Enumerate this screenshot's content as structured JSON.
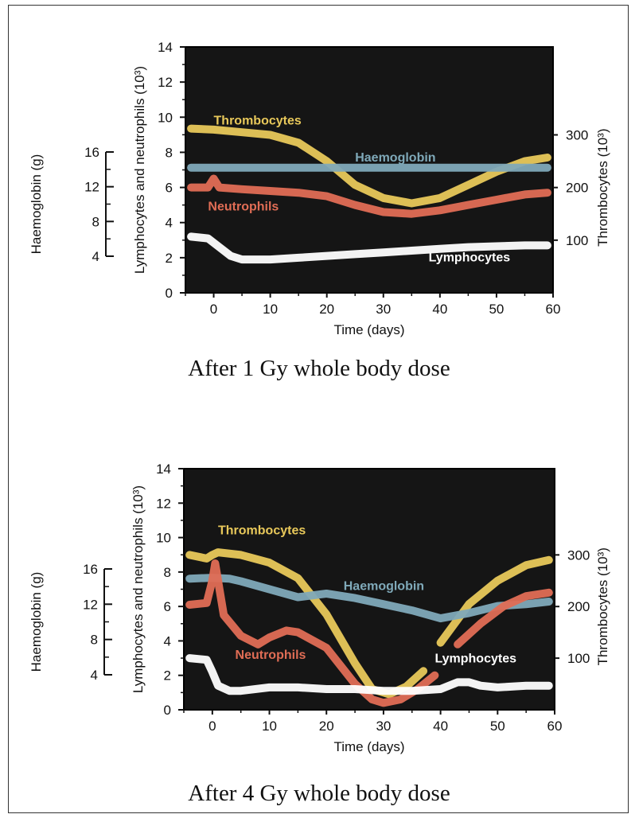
{
  "chart_data": [
    {
      "type": "line",
      "caption": "After 1 Gy whole body dose",
      "xlabel": "Time (days)",
      "x_ticks": [
        0,
        10,
        20,
        30,
        40,
        50,
        60
      ],
      "xlim": [
        -5,
        60
      ],
      "y_left_label": "Lymphocytes and neutrophils (10³)",
      "y_left_ticks": [
        0,
        2,
        4,
        6,
        8,
        10,
        12,
        14
      ],
      "y_left_lim": [
        0,
        14
      ],
      "y_hb_label": "Haemoglobin (g)",
      "y_hb_ticks": [
        4,
        8,
        12,
        16
      ],
      "y_hb_lim": [
        4,
        16
      ],
      "y_right_label": "Thrombocytes (10³)",
      "y_right_ticks": [
        100,
        200,
        300
      ],
      "y_right_lim": [
        0,
        467
      ],
      "series": [
        {
          "name": "Thrombocytes",
          "axis": "right",
          "color": "#e8c85a",
          "label_x": 0,
          "label_y": 320,
          "x": [
            -4,
            0,
            5,
            10,
            15,
            20,
            25,
            30,
            35,
            40,
            45,
            50,
            55,
            59
          ],
          "y": [
            312,
            310,
            305,
            300,
            285,
            250,
            205,
            180,
            170,
            180,
            205,
            230,
            250,
            257
          ]
        },
        {
          "name": "Haemoglobin",
          "axis": "hb",
          "color": "#7fa9b9",
          "label_x": 25,
          "label_y": 14.9,
          "x": [
            -4,
            0,
            10,
            20,
            30,
            40,
            50,
            59
          ],
          "y": [
            14.2,
            14.2,
            14.2,
            14.2,
            14.2,
            14.2,
            14.2,
            14.2
          ]
        },
        {
          "name": "Neutrophils",
          "axis": "left",
          "color": "#e06d55",
          "label_x": -1,
          "label_y": 4.7,
          "x": [
            -4,
            -1,
            0,
            1,
            5,
            10,
            15,
            20,
            25,
            30,
            35,
            40,
            45,
            50,
            55,
            59
          ],
          "y": [
            6.0,
            6.0,
            6.5,
            6.0,
            5.9,
            5.8,
            5.7,
            5.5,
            5.0,
            4.6,
            4.5,
            4.7,
            5.0,
            5.3,
            5.6,
            5.7
          ]
        },
        {
          "name": "Lymphocytes",
          "axis": "left",
          "color": "#ffffff",
          "label_x": 38,
          "label_y": 1.8,
          "x": [
            -4,
            -1,
            1,
            3,
            5,
            10,
            15,
            20,
            25,
            30,
            35,
            40,
            45,
            50,
            55,
            59
          ],
          "y": [
            3.2,
            3.1,
            2.6,
            2.1,
            1.9,
            1.9,
            2.0,
            2.1,
            2.2,
            2.3,
            2.4,
            2.5,
            2.6,
            2.65,
            2.7,
            2.7
          ]
        }
      ]
    },
    {
      "type": "line",
      "caption": "After 4 Gy whole body dose",
      "xlabel": "Time (days)",
      "x_ticks": [
        0,
        10,
        20,
        30,
        40,
        50,
        60
      ],
      "xlim": [
        -5,
        60
      ],
      "y_left_label": "Lymphocytes and neutrophils (10³)",
      "y_left_ticks": [
        0,
        2,
        4,
        6,
        8,
        10,
        12,
        14
      ],
      "y_left_lim": [
        0,
        14
      ],
      "y_hb_label": "Haemoglobin (g)",
      "y_hb_ticks": [
        4,
        8,
        12,
        16
      ],
      "y_hb_lim": [
        4,
        16
      ],
      "y_right_label": "Thrombocytes (10³)",
      "y_right_ticks": [
        100,
        200,
        300
      ],
      "y_right_lim": [
        0,
        467
      ],
      "series": [
        {
          "name": "Thrombocytes",
          "axis": "right",
          "color": "#e8c85a",
          "label_x": 1,
          "label_y": 340,
          "x": [
            -4,
            -1,
            0,
            1,
            5,
            10,
            15,
            20,
            25,
            28,
            31,
            34,
            37,
            null,
            40,
            45,
            50,
            55,
            59
          ],
          "y": [
            300,
            293,
            300,
            305,
            300,
            285,
            255,
            185,
            90,
            40,
            30,
            45,
            75,
            null,
            130,
            205,
            250,
            280,
            290
          ]
        },
        {
          "name": "Haemoglobin",
          "axis": "hb",
          "color": "#7fa9b9",
          "label_x": 23,
          "label_y": 13.6,
          "x": [
            -4,
            0,
            3,
            5,
            10,
            15,
            20,
            25,
            30,
            35,
            40,
            45,
            50,
            55,
            59
          ],
          "y": [
            14.9,
            15.0,
            14.9,
            14.6,
            13.7,
            12.8,
            13.2,
            12.7,
            12.0,
            11.3,
            10.4,
            11.0,
            11.8,
            12.0,
            12.3
          ]
        },
        {
          "name": "Neutrophils",
          "axis": "left",
          "color": "#e06d55",
          "label_x": 4,
          "label_y": 2.95,
          "x": [
            -4,
            -1,
            0,
            0.5,
            1,
            2,
            5,
            8,
            10,
            13,
            15,
            20,
            25,
            28,
            30,
            33,
            36,
            39,
            null,
            43,
            47,
            51,
            55,
            59
          ],
          "y": [
            6.1,
            6.2,
            7.5,
            8.5,
            7.5,
            5.5,
            4.3,
            3.8,
            4.2,
            4.6,
            4.5,
            3.6,
            1.5,
            0.6,
            0.4,
            0.6,
            1.2,
            2.0,
            null,
            3.8,
            5.0,
            6.0,
            6.6,
            6.8
          ]
        },
        {
          "name": "Lymphocytes",
          "axis": "left",
          "color": "#ffffff",
          "label_x": 39,
          "label_y": 2.75,
          "x": [
            -4,
            -1,
            0,
            1,
            3,
            5,
            10,
            15,
            20,
            25,
            30,
            35,
            40,
            43,
            45,
            47,
            50,
            55,
            59
          ],
          "y": [
            3.0,
            2.9,
            2.2,
            1.4,
            1.1,
            1.1,
            1.3,
            1.3,
            1.2,
            1.2,
            1.1,
            1.1,
            1.2,
            1.6,
            1.6,
            1.4,
            1.3,
            1.4,
            1.4
          ]
        }
      ]
    }
  ]
}
